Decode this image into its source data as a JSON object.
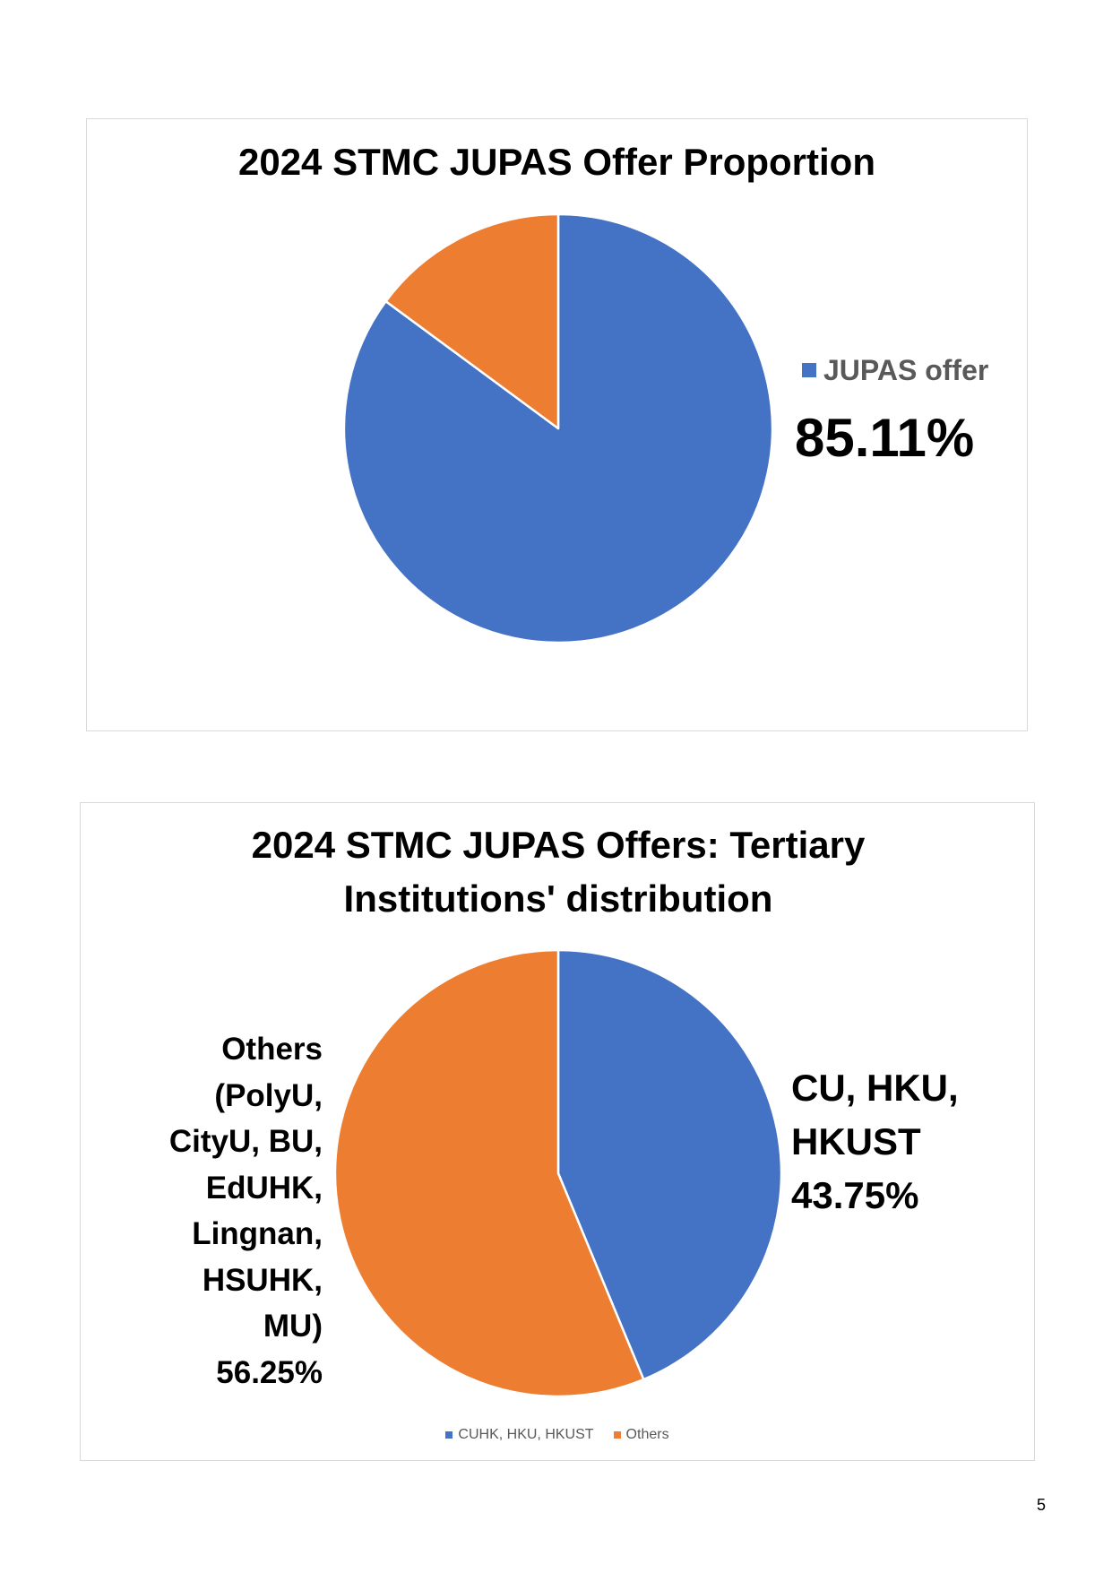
{
  "page_number": "5",
  "chart_data": [
    {
      "type": "pie",
      "title": "2024 STMC JUPAS Offer Proportion",
      "slices": [
        {
          "name": "JUPAS offer",
          "value": 85.11,
          "color": "#4472C4"
        },
        {
          "value": 14.89,
          "color": "#ED7D31"
        }
      ],
      "data_labels": [
        {
          "slice": 0,
          "text": "85.11%"
        }
      ],
      "legend": {
        "position": "right"
      }
    },
    {
      "type": "pie",
      "title": "2024 STMC JUPAS Offers: Tertiary Institutions' distribution",
      "slices": [
        {
          "name": "CUHK, HKU, HKUST",
          "value": 43.75,
          "color": "#4472C4"
        },
        {
          "name": "Others",
          "value": 56.25,
          "color": "#ED7D31"
        }
      ],
      "data_labels": [
        {
          "slice": 0,
          "lines": [
            "CU, HKU,",
            "HKUST",
            "43.75%"
          ]
        },
        {
          "slice": 1,
          "lines": [
            "Others",
            "(PolyU,",
            "CityU, BU,",
            "EdUHK,",
            "Lingnan,",
            "HSUHK,",
            "MU)",
            "56.25%"
          ]
        }
      ],
      "legend": {
        "position": "bottom"
      }
    }
  ]
}
